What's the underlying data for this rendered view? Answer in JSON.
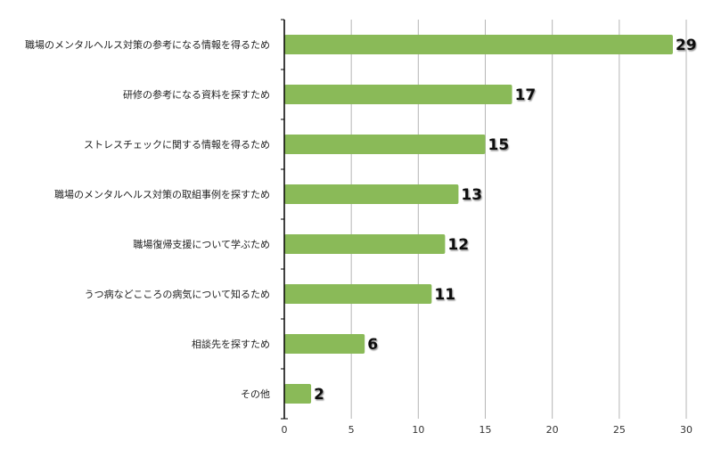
{
  "chart_data": {
    "type": "bar",
    "orientation": "horizontal",
    "categories": [
      "職場のメンタルヘルス対策の参考になる情報を得るため",
      "研修の参考になる資料を探すため",
      "ストレスチェックに関する情報を得るため",
      "職場のメンタルヘルス対策の取組事例を探すため",
      "職場復帰支援について学ぶため",
      "うつ病などこころの病気について知るため",
      "相談先を探すため",
      "その他"
    ],
    "values": [
      29,
      17,
      15,
      13,
      12,
      11,
      6,
      2
    ],
    "xlim": [
      0,
      30
    ],
    "xticks": [
      0,
      5,
      10,
      15,
      20,
      25,
      30
    ],
    "grid": true,
    "data_labels": true,
    "bar_color": "#8aba58",
    "title": "",
    "xlabel": "",
    "ylabel": ""
  }
}
